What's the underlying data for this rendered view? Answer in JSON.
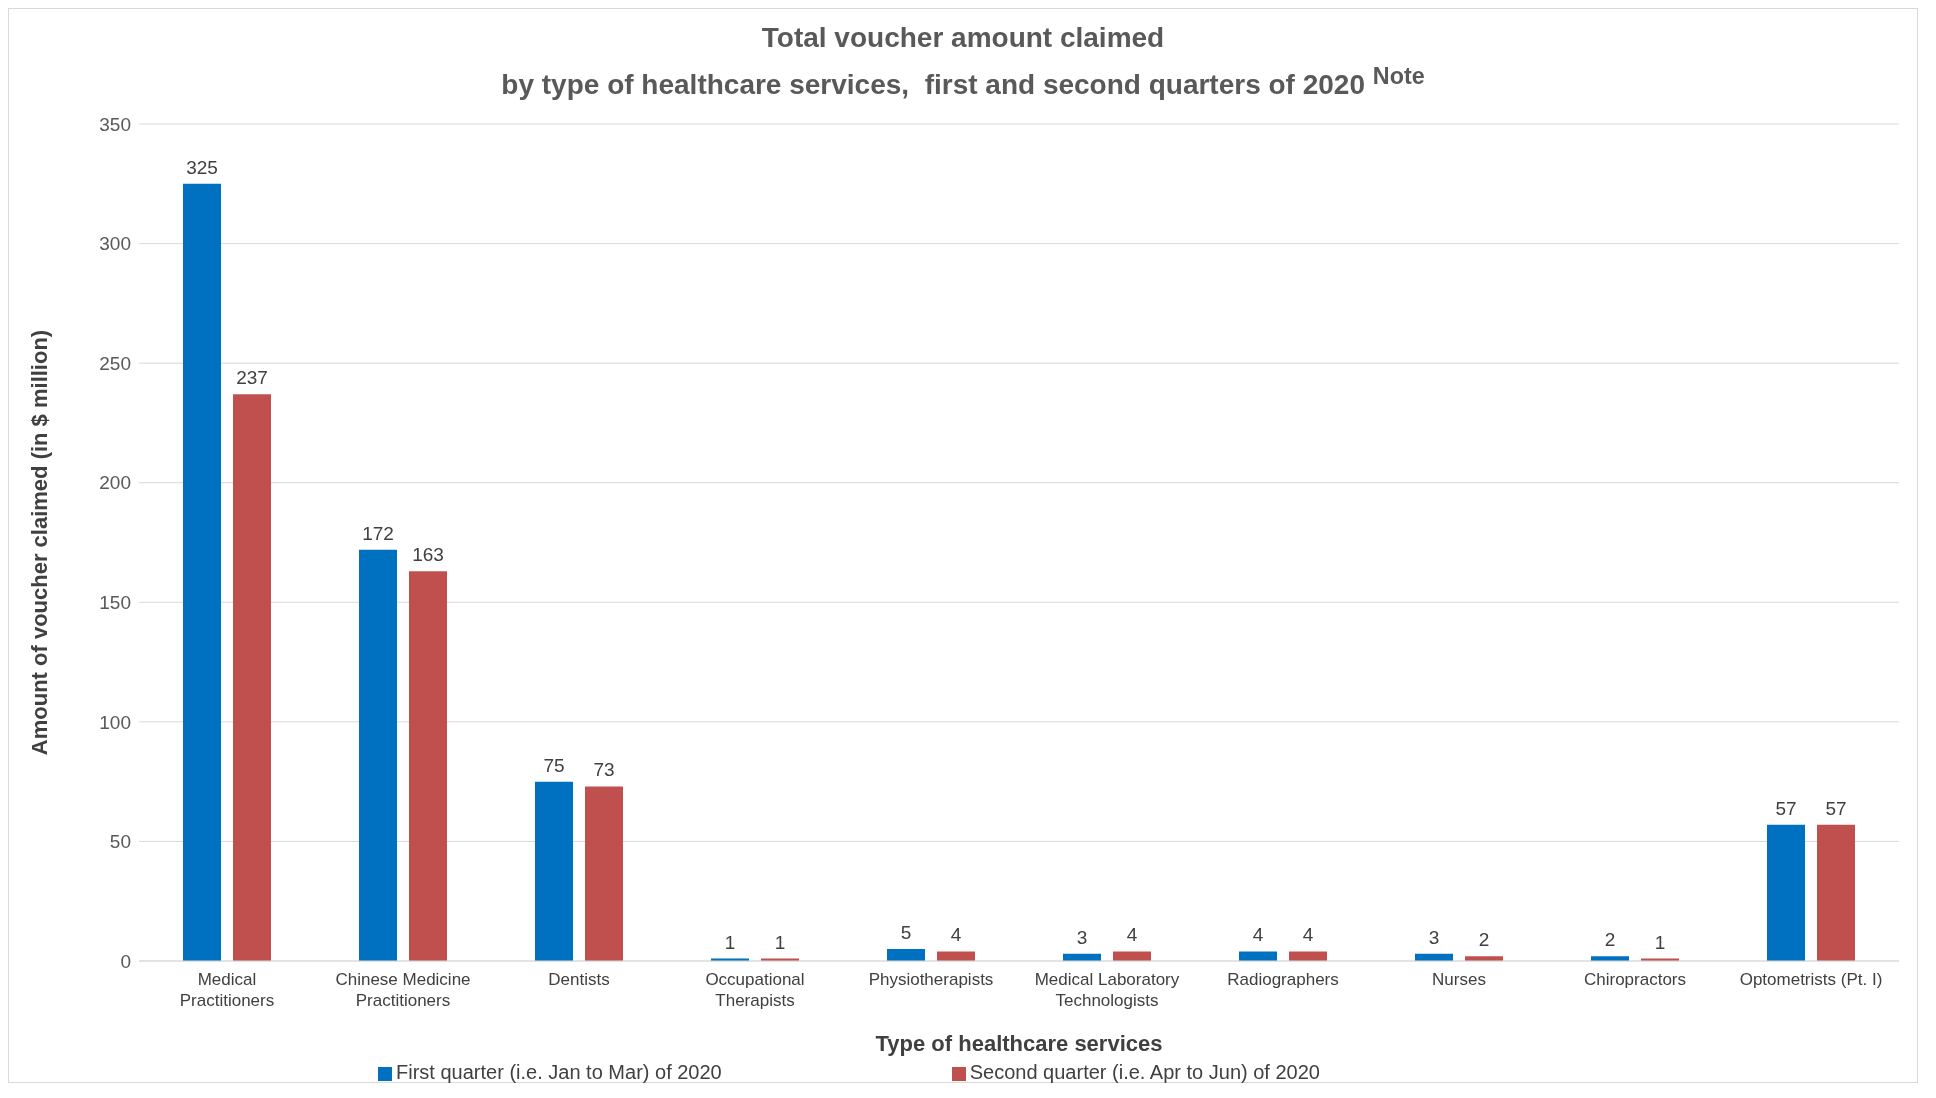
{
  "chart_data": {
    "type": "bar",
    "title": "Total voucher amount claimed\nby type of healthcare services,  first and second quarters of 2020 $^{Note}$",
    "xlabel": "Type of healthcare services",
    "ylabel": "Amount of voucher claimed  (in $ million)",
    "categories": [
      "Medical Practitioners",
      "Chinese Medicine Practitioners",
      "Dentists",
      "Occupational Therapists",
      "Physiotherapists",
      "Medical Laboratory Technologists",
      "Radiographers",
      "Nurses",
      "Chiropractors",
      "Optometrists (Pt. I)"
    ],
    "series": [
      {
        "name": "First quarter (i.e. Jan to Mar) of 2020",
        "color": "#0070c0",
        "values": [
          325,
          172,
          75,
          1,
          5,
          3,
          4,
          3,
          2,
          57
        ]
      },
      {
        "name": "Second quarter (i.e. Apr to Jun) of 2020",
        "color": "#c0504d",
        "values": [
          237,
          163,
          73,
          1,
          4,
          4,
          4,
          2,
          1,
          57
        ]
      }
    ],
    "ylim": [
      0,
      350
    ],
    "yticks": [
      0,
      50,
      100,
      150,
      200,
      250,
      300,
      350
    ],
    "grid": "y",
    "legend": "bottom",
    "data_labels": true
  }
}
